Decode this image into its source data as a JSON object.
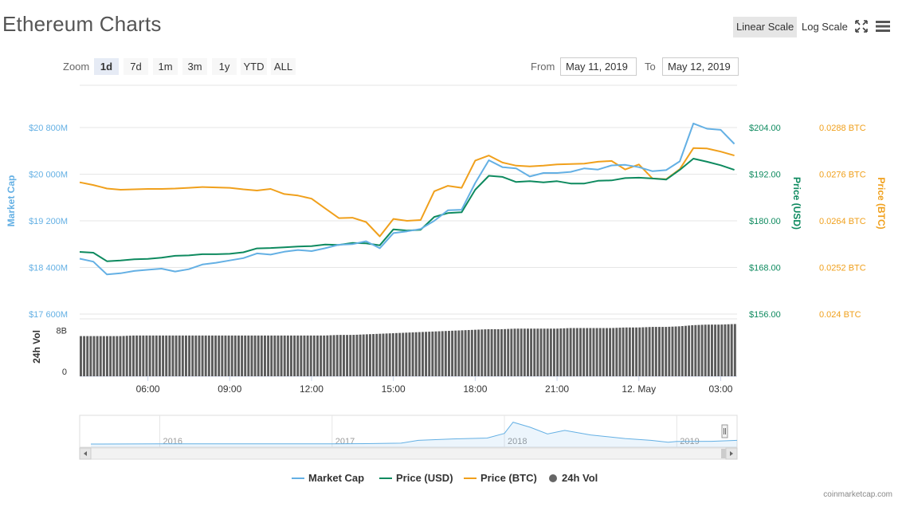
{
  "page": {
    "title": "Ethereum Charts",
    "credit": "coinmarketcap.com"
  },
  "toolbar": {
    "linear_label": "Linear Scale",
    "log_label": "Log Scale",
    "fullscreen_icon": "fullscreen-icon",
    "menu_icon": "menu-icon"
  },
  "zoom": {
    "label": "Zoom",
    "options": [
      "1d",
      "7d",
      "1m",
      "3m",
      "1y",
      "YTD",
      "ALL"
    ],
    "selected": "1d"
  },
  "range": {
    "from_label": "From",
    "from_value": "May 11, 2019",
    "to_label": "To",
    "to_value": "May 12, 2019"
  },
  "colors": {
    "market_cap": "#64b0e4",
    "price_usd": "#0e8a5f",
    "price_btc": "#f0a01c",
    "volume": "#5b5b5b",
    "grid": "#e6e6e6"
  },
  "chart_data": {
    "type": "line",
    "axes": {
      "market_cap": {
        "label": "Market Cap",
        "ticks": [
          "$20 800M",
          "$20 000M",
          "$19 200M",
          "$18 400M",
          "$17 600M"
        ],
        "tick_values": [
          20800,
          20000,
          19200,
          18400,
          17600
        ]
      },
      "price_usd": {
        "label": "Price (USD)",
        "ticks": [
          "$204.00",
          "$192.00",
          "$180.00",
          "$168.00",
          "$156.00"
        ],
        "tick_values": [
          204,
          192,
          180,
          168,
          156
        ]
      },
      "price_btc": {
        "label": "Price (BTC)",
        "ticks": [
          "0.0288 BTC",
          "0.0276 BTC",
          "0.0264 BTC",
          "0.0252 BTC",
          "0.024 BTC"
        ],
        "tick_values": [
          0.0288,
          0.0276,
          0.0264,
          0.0252,
          0.024
        ]
      },
      "volume": {
        "label": "24h Vol",
        "ticks": [
          "8B",
          "0"
        ],
        "tick_values": [
          8,
          0
        ],
        "max": 10
      },
      "x_ticks": [
        "06:00",
        "09:00",
        "12:00",
        "15:00",
        "18:00",
        "21:00",
        "12. May",
        "03:00"
      ],
      "x_tick_hours": [
        6,
        9,
        12,
        15,
        18,
        21,
        24,
        27
      ],
      "x_range_hours": [
        3.5,
        27.6
      ]
    },
    "x_hours": [
      3.5,
      4.0,
      4.5,
      5.0,
      5.5,
      6.0,
      6.5,
      7.0,
      7.5,
      8.0,
      8.5,
      9.0,
      9.5,
      10.0,
      10.5,
      11.0,
      11.5,
      12.0,
      12.5,
      13.0,
      13.5,
      14.0,
      14.5,
      15.0,
      15.5,
      16.0,
      16.5,
      17.0,
      17.5,
      18.0,
      18.5,
      19.0,
      19.5,
      20.0,
      20.5,
      21.0,
      21.5,
      22.0,
      22.5,
      23.0,
      23.5,
      24.0,
      24.5,
      25.0,
      25.5,
      26.0,
      26.5,
      27.0,
      27.5
    ],
    "series": [
      {
        "name": "Market Cap",
        "axis": "market_cap",
        "unit": "M USD",
        "values": [
          18550,
          18500,
          18280,
          18300,
          18340,
          18360,
          18380,
          18330,
          18370,
          18450,
          18480,
          18520,
          18560,
          18640,
          18620,
          18670,
          18700,
          18680,
          18730,
          18790,
          18800,
          18850,
          18730,
          18990,
          19020,
          19060,
          19200,
          19380,
          19390,
          19850,
          20240,
          20120,
          20100,
          19960,
          20020,
          20020,
          20040,
          20100,
          20080,
          20150,
          20160,
          20120,
          20050,
          20070,
          20220,
          20870,
          20780,
          20760,
          20520
        ]
      },
      {
        "name": "Price (USD)",
        "axis": "price_usd",
        "unit": "USD",
        "values": [
          172.0,
          171.8,
          169.6,
          169.8,
          170.1,
          170.2,
          170.5,
          171.0,
          171.1,
          171.4,
          171.4,
          171.5,
          171.9,
          172.9,
          173.0,
          173.2,
          173.4,
          173.5,
          173.9,
          173.8,
          174.3,
          174.2,
          173.7,
          177.8,
          177.5,
          177.7,
          181.0,
          182.0,
          182.2,
          188.0,
          191.6,
          191.3,
          190.0,
          190.2,
          189.9,
          190.2,
          189.6,
          189.6,
          190.3,
          190.4,
          191.0,
          191.1,
          190.9,
          190.6,
          193.1,
          196.0,
          195.2,
          194.3,
          193.1
        ]
      },
      {
        "name": "Price (BTC)",
        "axis": "price_btc",
        "unit": "BTC",
        "values": [
          0.02739,
          0.02732,
          0.02723,
          0.0272,
          0.02721,
          0.02722,
          0.02722,
          0.02723,
          0.02725,
          0.02727,
          0.02726,
          0.02725,
          0.02721,
          0.02718,
          0.02722,
          0.02709,
          0.02705,
          0.02697,
          0.02672,
          0.02647,
          0.02648,
          0.02637,
          0.026,
          0.02645,
          0.0264,
          0.02642,
          0.02716,
          0.0273,
          0.02725,
          0.02795,
          0.02808,
          0.0279,
          0.02782,
          0.0278,
          0.02782,
          0.02785,
          0.02786,
          0.02787,
          0.02792,
          0.02794,
          0.02772,
          0.02785,
          0.02749,
          0.02747,
          0.02773,
          0.02827,
          0.02826,
          0.02818,
          0.02808
        ]
      },
      {
        "name": "24h Vol",
        "axis": "volume",
        "unit": "B USD",
        "values": [
          7.0,
          7.0,
          7.0,
          7.0,
          7.1,
          7.1,
          7.1,
          7.1,
          7.1,
          7.1,
          7.1,
          7.1,
          7.1,
          7.1,
          7.1,
          7.1,
          7.1,
          7.1,
          7.1,
          7.2,
          7.2,
          7.3,
          7.4,
          7.5,
          7.6,
          7.7,
          7.8,
          7.9,
          8.0,
          8.1,
          8.2,
          8.2,
          8.3,
          8.3,
          8.3,
          8.3,
          8.4,
          8.4,
          8.4,
          8.4,
          8.5,
          8.5,
          8.6,
          8.6,
          8.7,
          8.9,
          9.0,
          9.0,
          9.1
        ]
      }
    ],
    "legend_placement": "bottom-center",
    "grid": true
  },
  "navigator": {
    "year_labels": [
      "2016",
      "2017",
      "2018",
      "2019"
    ],
    "year_positions": [
      2016,
      2017,
      2018,
      2019
    ],
    "x_years": [
      2015.6,
      2016.0,
      2016.5,
      2017.0,
      2017.2,
      2017.4,
      2017.5,
      2017.7,
      2017.9,
      2018.0,
      2018.05,
      2018.15,
      2018.25,
      2018.35,
      2018.5,
      2018.7,
      2018.85,
      2018.95,
      2019.0,
      2019.2,
      2019.35
    ],
    "market_cap_b": [
      0.1,
      0.8,
      1.0,
      0.9,
      2.0,
      5.0,
      20.0,
      28.0,
      33.0,
      58.0,
      120.0,
      92.0,
      55.0,
      75.0,
      50.0,
      30.0,
      20.0,
      10.0,
      14.0,
      15.0,
      20.0
    ],
    "max": 140
  }
}
